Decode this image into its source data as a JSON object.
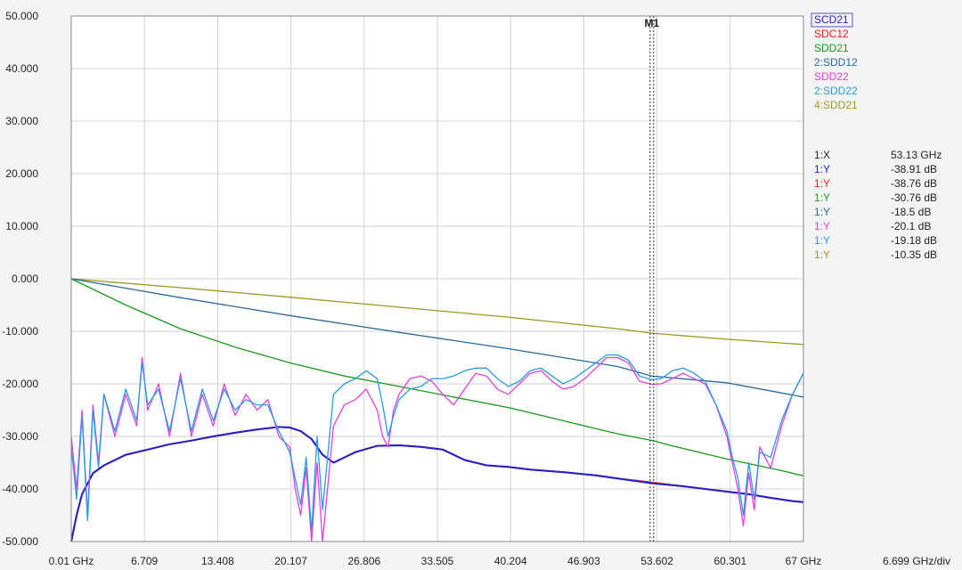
{
  "chart_data": {
    "type": "line",
    "title": "",
    "xlabel": "",
    "ylabel": "",
    "xlim": [
      0.01,
      67
    ],
    "ylim": [
      -50,
      50
    ],
    "grid": true,
    "legend_position": "top-right",
    "x_tick_labels": [
      "0.01 GHz",
      "6.709",
      "13.408",
      "20.107",
      "26.806",
      "33.505",
      "40.204",
      "46.903",
      "53.602",
      "60.301",
      "67 GHz"
    ],
    "x_ticks": [
      0.01,
      6.709,
      13.408,
      20.107,
      26.806,
      33.505,
      40.204,
      46.903,
      53.602,
      60.301,
      67
    ],
    "x_div_label": "6.699 GHz/div",
    "y_tick_labels": [
      "50.000",
      "40.000",
      "30.000",
      "20.000",
      "10.000",
      "0.000",
      "-10.000",
      "-20.000",
      "-30.000",
      "-40.000",
      "-50.000"
    ],
    "y_ticks": [
      50,
      40,
      30,
      20,
      10,
      0,
      -10,
      -20,
      -30,
      -40,
      -50
    ],
    "legend": [
      {
        "name": "SCD21",
        "color": "#2222cc"
      },
      {
        "name": "SDC12",
        "color": "#ee2222"
      },
      {
        "name": "SDD21",
        "color": "#1a9a1a"
      },
      {
        "name": "2:SDD12",
        "color": "#2a6a9a"
      },
      {
        "name": "SDD22",
        "color": "#e040e0"
      },
      {
        "name": "2:SDD22",
        "color": "#2a9ae0"
      },
      {
        "name": "4:SDD21",
        "color": "#9a9a20"
      }
    ],
    "marker": {
      "label": "M1",
      "x": 53.13,
      "readout": [
        {
          "label": "1:X",
          "value": "53.13 GHz",
          "color": "#222222"
        },
        {
          "label": "1:Y",
          "value": "-38.91 dB",
          "color": "#2222cc"
        },
        {
          "label": "1:Y",
          "value": "-38.76 dB",
          "color": "#ee2222"
        },
        {
          "label": "1:Y",
          "value": "-30.76 dB",
          "color": "#1a9a1a"
        },
        {
          "label": "1:Y",
          "value": "-18.5 dB",
          "color": "#2a6a9a"
        },
        {
          "label": "1:Y",
          "value": "-20.1 dB",
          "color": "#e040e0"
        },
        {
          "label": "1:Y",
          "value": "-19.18 dB",
          "color": "#2a9ae0"
        },
        {
          "label": "1:Y",
          "value": "-10.35 dB",
          "color": "#9a9a20"
        }
      ]
    },
    "series": [
      {
        "name": "SCD21",
        "color": "#2222cc",
        "x": [
          0.01,
          0.5,
          1,
          2,
          3,
          5,
          7,
          9,
          11,
          13,
          15,
          17,
          19,
          20,
          21,
          22,
          23,
          24,
          26,
          28,
          30,
          32,
          34,
          36,
          38,
          40,
          42,
          45,
          48,
          50,
          53.13,
          56,
          58,
          60,
          62,
          64,
          66,
          67
        ],
        "y": [
          -50,
          -45,
          -41,
          -37,
          -35.5,
          -33.5,
          -32.5,
          -31.5,
          -30.8,
          -30,
          -29.3,
          -28.7,
          -28.2,
          -28.3,
          -29,
          -30.5,
          -33.5,
          -35,
          -33,
          -31.8,
          -31.7,
          -32,
          -32.5,
          -34.5,
          -35.5,
          -35.8,
          -36.3,
          -36.8,
          -37.4,
          -38,
          -38.91,
          -39.5,
          -40,
          -40.5,
          -41,
          -41.7,
          -42.3,
          -42.5
        ]
      },
      {
        "name": "SDC12",
        "color": "#ee2222",
        "x": [
          0.01,
          0.5,
          1,
          2,
          3,
          5,
          7,
          9,
          11,
          13,
          15,
          17,
          19,
          20,
          21,
          22,
          23,
          24,
          26,
          28,
          30,
          32,
          34,
          36,
          38,
          40,
          42,
          45,
          48,
          50,
          53.13,
          56,
          58,
          60,
          62,
          64,
          66,
          67
        ],
        "y": [
          -50,
          -45,
          -41,
          -37,
          -35.5,
          -33.5,
          -32.5,
          -31.5,
          -30.8,
          -30,
          -29.3,
          -28.7,
          -28.2,
          -28.3,
          -29,
          -30.5,
          -33.5,
          -35,
          -33,
          -31.8,
          -31.7,
          -32,
          -32.5,
          -34.5,
          -35.5,
          -35.8,
          -36.3,
          -36.8,
          -37.4,
          -38,
          -38.76,
          -39.5,
          -40,
          -40.5,
          -41,
          -41.7,
          -42.3,
          -42.5
        ]
      },
      {
        "name": "SDD21",
        "color": "#1a9a1a",
        "x": [
          0.01,
          5,
          10,
          15,
          20,
          25,
          30,
          35,
          40,
          45,
          50,
          53.13,
          55,
          60,
          65,
          67
        ],
        "y": [
          0,
          -5,
          -9.5,
          -13,
          -16,
          -18.5,
          -20.5,
          -22.5,
          -24.5,
          -27,
          -29.5,
          -30.76,
          -31.8,
          -34.3,
          -36.5,
          -37.5
        ]
      },
      {
        "name": "2:SDD12",
        "color": "#2a6a9a",
        "x": [
          0.01,
          10,
          20,
          30,
          40,
          50,
          53.13,
          60,
          67
        ],
        "y": [
          0,
          -3.6,
          -7,
          -10.2,
          -13.3,
          -16.7,
          -18.5,
          -19.8,
          -22.5
        ]
      },
      {
        "name": "SDD22",
        "color": "#e040e0",
        "x": [
          0.01,
          0.5,
          1,
          1.5,
          2,
          2.5,
          3,
          4,
          5,
          6,
          6.5,
          7,
          8,
          9,
          10,
          11,
          12,
          13,
          14,
          15,
          16,
          17,
          18,
          19,
          20,
          20.5,
          21,
          21.5,
          22,
          22.5,
          23,
          24,
          25,
          26,
          27,
          28,
          28.5,
          29,
          29.5,
          30,
          31,
          32,
          33,
          34,
          35,
          36,
          37,
          38,
          39,
          40,
          41,
          42,
          43,
          44,
          45,
          46,
          47,
          48,
          49,
          50,
          51,
          52,
          53.13,
          54,
          55,
          56,
          57,
          58,
          59,
          60,
          60.5,
          61,
          61.5,
          62,
          62.5,
          63,
          64,
          65,
          66,
          67
        ],
        "y": [
          -30,
          -40,
          -25,
          -45,
          -24,
          -35,
          -22,
          -30,
          -22,
          -28,
          -15,
          -25,
          -20,
          -30,
          -18,
          -30,
          -22,
          -28,
          -20,
          -26,
          -22,
          -25,
          -23,
          -30,
          -32,
          -40,
          -45,
          -36,
          -50,
          -35,
          -50,
          -28,
          -24,
          -23,
          -21,
          -25,
          -30,
          -32,
          -25,
          -22,
          -19,
          -18.5,
          -19.5,
          -22,
          -24,
          -21,
          -18,
          -18.5,
          -21,
          -22,
          -20,
          -18,
          -17.5,
          -19.5,
          -21,
          -20.5,
          -19,
          -17,
          -15,
          -15,
          -16,
          -19.5,
          -20.1,
          -20,
          -19,
          -18,
          -19,
          -20,
          -24,
          -30,
          -35,
          -40,
          -47,
          -37,
          -44,
          -32,
          -36,
          -28,
          -22,
          -18
        ]
      },
      {
        "name": "2:SDD22",
        "color": "#2a9ae0",
        "x": [
          0.01,
          0.5,
          1,
          1.5,
          2,
          2.5,
          3,
          4,
          5,
          6,
          6.5,
          7,
          8,
          9,
          10,
          11,
          12,
          13,
          14,
          15,
          16,
          17,
          18,
          19,
          20,
          20.5,
          21,
          21.5,
          22,
          22.5,
          23,
          24,
          25,
          26,
          27,
          28,
          28.5,
          29,
          29.5,
          30,
          31,
          32,
          33,
          34,
          35,
          36,
          37,
          38,
          39,
          40,
          41,
          42,
          43,
          44,
          45,
          46,
          47,
          48,
          49,
          50,
          51,
          52,
          53.13,
          54,
          55,
          56,
          57,
          58,
          59,
          60,
          60.5,
          61,
          61.5,
          62,
          62.5,
          63,
          64,
          65,
          66,
          67
        ],
        "y": [
          -32,
          -42,
          -26,
          -46,
          -25,
          -36,
          -22,
          -29,
          -21,
          -27,
          -16,
          -24,
          -21,
          -29,
          -19,
          -29,
          -21,
          -27,
          -21,
          -25,
          -23,
          -24,
          -24,
          -29,
          -33,
          -38,
          -43,
          -34,
          -48,
          -30,
          -44,
          -22,
          -20,
          -19,
          -17.5,
          -19,
          -24,
          -30,
          -26,
          -23,
          -21,
          -20.5,
          -19,
          -19,
          -18.5,
          -17.5,
          -17,
          -17,
          -19,
          -20.5,
          -19.5,
          -17.5,
          -17,
          -18.5,
          -20,
          -19,
          -17.5,
          -16,
          -14.5,
          -14.5,
          -15.5,
          -18.5,
          -19.18,
          -19,
          -17.5,
          -17,
          -18,
          -19.5,
          -24,
          -29,
          -34,
          -38,
          -45,
          -35,
          -42,
          -33,
          -34,
          -27,
          -22,
          -18
        ]
      },
      {
        "name": "4:SDD21",
        "color": "#9a9a20",
        "x": [
          0.01,
          10,
          20,
          30,
          40,
          50,
          53.13,
          60,
          67
        ],
        "y": [
          0,
          -1.7,
          -3.5,
          -5.4,
          -7.3,
          -9.5,
          -10.35,
          -11.5,
          -12.5
        ]
      }
    ]
  }
}
